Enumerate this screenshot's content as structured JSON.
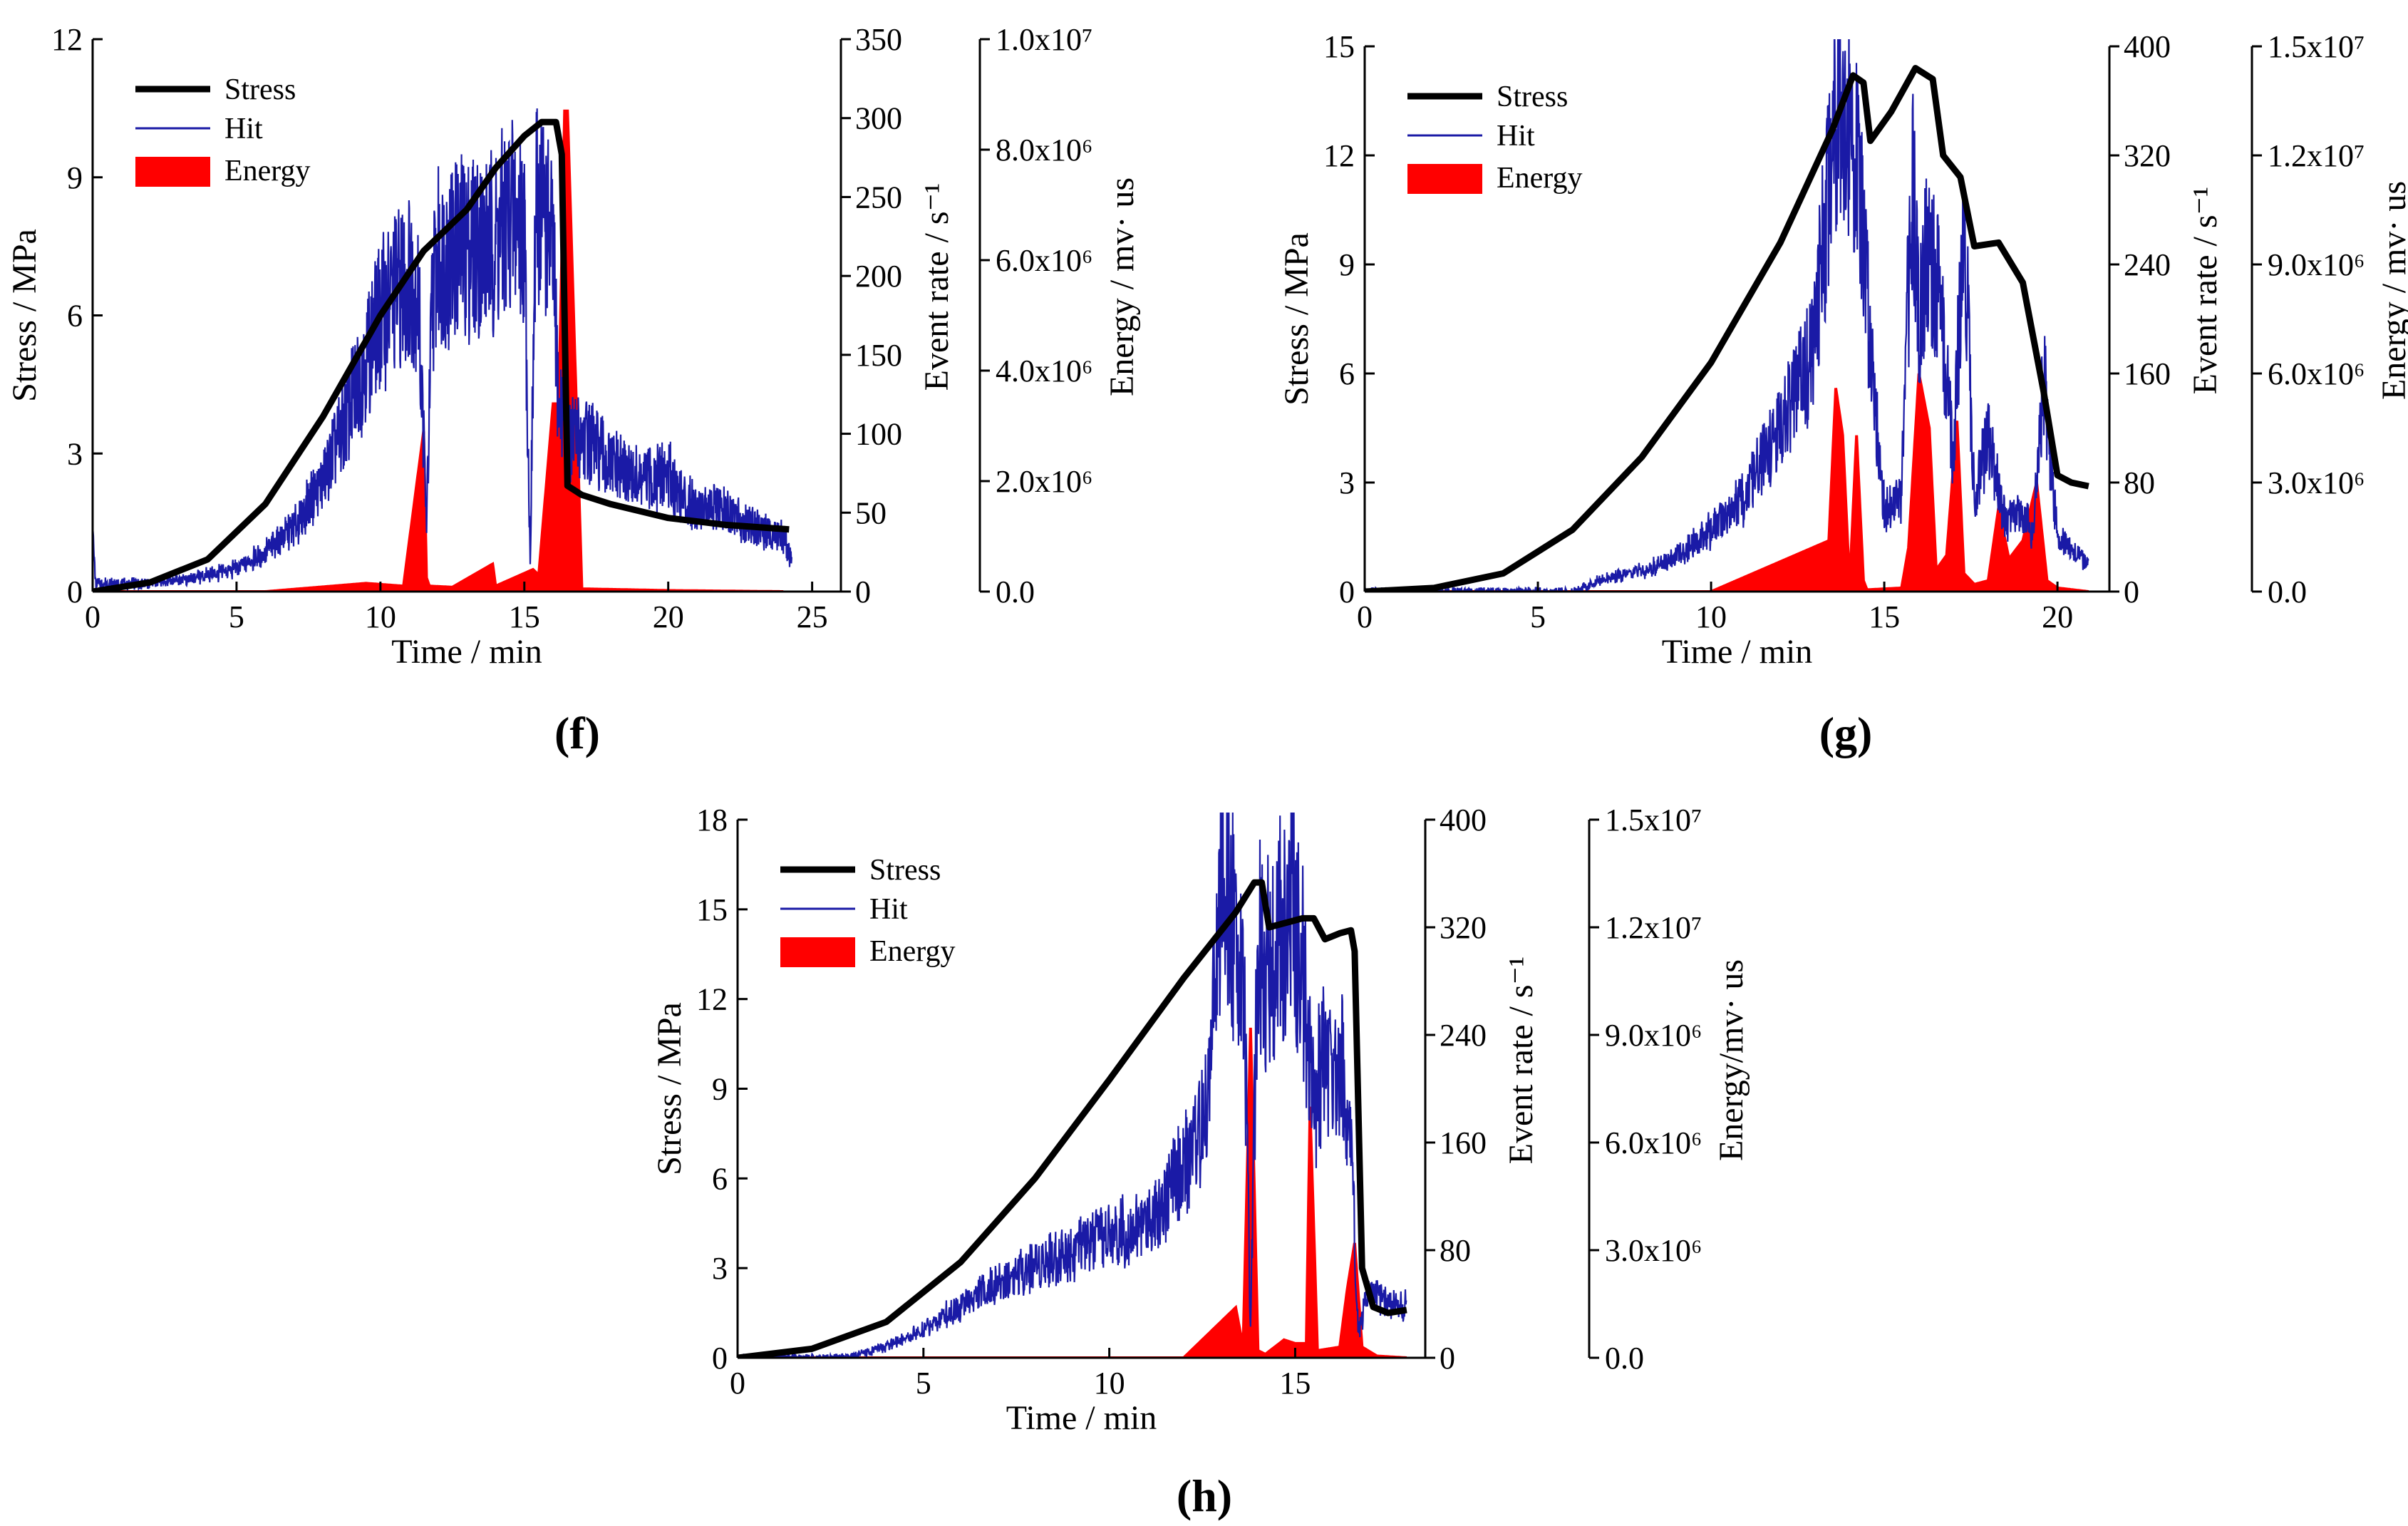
{
  "figure": {
    "panels": [
      {
        "id": "f",
        "label": "(f)"
      },
      {
        "id": "g",
        "label": "(g)"
      },
      {
        "id": "h",
        "label": "(h)"
      }
    ]
  },
  "colors": {
    "stress": "#000000",
    "hit": "#1a1aa6",
    "energy": "#ff0000",
    "axis": "#000000"
  },
  "chart_data": [
    {
      "type": "line",
      "panel": "(f)",
      "xlabel": "Time / min",
      "ylabel": "Stress / MPa",
      "y2label": "Event rate / s⁻¹",
      "y3label": "Energy / mv· us",
      "xlim": [
        0,
        26
      ],
      "ylim": [
        0,
        12
      ],
      "y2lim": [
        0,
        350
      ],
      "y3lim": [
        0,
        10000000
      ],
      "xticks": [
        "0",
        "5",
        "10",
        "15",
        "20",
        "25"
      ],
      "xtick_values": [
        0,
        5,
        10,
        15,
        20,
        25
      ],
      "yticks": [
        "0",
        "3",
        "6",
        "9",
        "12"
      ],
      "ytick_values": [
        0,
        3,
        6,
        9,
        12
      ],
      "y2ticks": [
        "0",
        "50",
        "100",
        "150",
        "200",
        "250",
        "300",
        "350"
      ],
      "y2tick_values": [
        0,
        50,
        100,
        150,
        200,
        250,
        300,
        350
      ],
      "y3ticks": [
        "0.0",
        "2.0x10⁶",
        "4.0x10⁶",
        "6.0x10⁶",
        "8.0x10⁶",
        "1.0x10⁷"
      ],
      "y3tick_values": [
        0,
        2000000,
        4000000,
        6000000,
        8000000,
        10000000
      ],
      "legend": {
        "placement": "top-left",
        "entries": [
          "Stress",
          "Hit",
          "Energy"
        ]
      },
      "series": [
        {
          "name": "Stress",
          "axis": "stress",
          "x": [
            0,
            2,
            4,
            6,
            8,
            10,
            11.5,
            13,
            14,
            15,
            15.6,
            16.1,
            16.3,
            16.5,
            17,
            18,
            20,
            22,
            24.2
          ],
          "y": [
            0,
            0.2,
            0.7,
            1.9,
            3.8,
            6.0,
            7.4,
            8.3,
            9.2,
            9.9,
            10.2,
            10.2,
            9.5,
            2.3,
            2.1,
            1.9,
            1.6,
            1.45,
            1.35
          ]
        },
        {
          "name": "Hit",
          "axis": "rate",
          "x": [
            0,
            0.1,
            0.3,
            2,
            4,
            5,
            6,
            7,
            8,
            9,
            10,
            10.5,
            11,
            11.3,
            11.5,
            11.6,
            11.8,
            12,
            13,
            14,
            14.5,
            15,
            15.2,
            15.4,
            15.6,
            16,
            16.2,
            16.4,
            16.6,
            17,
            17.5,
            18,
            19,
            20,
            20.5,
            21,
            22,
            23,
            24,
            24.3
          ],
          "y": [
            40,
            5,
            5,
            5,
            10,
            15,
            25,
            40,
            70,
            120,
            175,
            190,
            200,
            190,
            100,
            40,
            190,
            210,
            220,
            220,
            240,
            230,
            20,
            240,
            250,
            210,
            110,
            120,
            95,
            100,
            90,
            80,
            70,
            75,
            60,
            55,
            50,
            40,
            35,
            20
          ]
        },
        {
          "name": "Energy",
          "axis": "energy",
          "x": [
            0,
            6,
            9.5,
            10.8,
            11.5,
            11.6,
            11.7,
            12.5,
            13.9,
            14.0,
            15.3,
            15.5,
            16.0,
            16.2,
            16.4,
            16.5,
            17.0,
            20,
            24
          ],
          "y": [
            0,
            0,
            150000,
            100000,
            2900000,
            250000,
            100000,
            80000,
            500000,
            100000,
            400000,
            300000,
            3400000,
            3400000,
            8700000,
            8700000,
            50000,
            20000,
            0
          ]
        }
      ]
    },
    {
      "type": "line",
      "panel": "(g)",
      "xlabel": "Time / min",
      "ylabel": "Stress / MPa",
      "y2label": "Event rate / s⁻¹",
      "y3label": "Energy / mv· us",
      "xlim": [
        0,
        21.5
      ],
      "ylim": [
        0,
        15
      ],
      "y2lim": [
        0,
        400
      ],
      "y3lim": [
        0,
        15000000
      ],
      "xticks": [
        "0",
        "5",
        "10",
        "15",
        "20"
      ],
      "xtick_values": [
        0,
        5,
        10,
        15,
        20
      ],
      "yticks": [
        "0",
        "3",
        "6",
        "9",
        "12",
        "15"
      ],
      "ytick_values": [
        0,
        3,
        6,
        9,
        12,
        15
      ],
      "y2ticks": [
        "0",
        "80",
        "160",
        "240",
        "320",
        "400"
      ],
      "y2tick_values": [
        0,
        80,
        160,
        240,
        320,
        400
      ],
      "y3ticks": [
        "0.0",
        "3.0x10⁶",
        "6.0x10⁶",
        "9.0x10⁶",
        "1.2x10⁷",
        "1.5x10⁷"
      ],
      "y3tick_values": [
        0,
        3000000,
        6000000,
        9000000,
        12000000,
        15000000
      ],
      "legend": {
        "placement": "top-left",
        "entries": [
          "Stress",
          "Hit",
          "Energy"
        ]
      },
      "series": [
        {
          "name": "Stress",
          "axis": "stress",
          "x": [
            0,
            2,
            4,
            6,
            8,
            10,
            12,
            13.5,
            14.1,
            14.4,
            14.6,
            15.2,
            15.9,
            16.4,
            16.7,
            17.2,
            17.6,
            18.3,
            19.0,
            19.6,
            20.0,
            20.4,
            20.9
          ],
          "y": [
            0,
            0.1,
            0.5,
            1.7,
            3.7,
            6.3,
            9.6,
            12.7,
            14.2,
            14.0,
            12.4,
            13.2,
            14.4,
            14.1,
            12.0,
            11.4,
            9.5,
            9.6,
            8.5,
            5.5,
            3.2,
            3.0,
            2.9
          ]
        },
        {
          "name": "Hit",
          "axis": "rate",
          "x": [
            0,
            2,
            4,
            6,
            7,
            8,
            9,
            10,
            11,
            12,
            12.5,
            13,
            13.5,
            13.7,
            13.9,
            14.1,
            14.5,
            15,
            15.5,
            15.8,
            16,
            16.3,
            16.6,
            17,
            17.3,
            17.6,
            18,
            18.5,
            19,
            19.3,
            19.6,
            20,
            20.5,
            20.9
          ],
          "y": [
            0,
            0,
            0,
            0,
            10,
            15,
            25,
            45,
            70,
            120,
            150,
            180,
            340,
            390,
            330,
            340,
            220,
            60,
            70,
            300,
            210,
            250,
            210,
            100,
            280,
            70,
            110,
            50,
            60,
            40,
            160,
            40,
            30,
            20
          ]
        },
        {
          "name": "Energy",
          "axis": "energy",
          "x": [
            0,
            10,
            13.4,
            13.6,
            13.8,
            14.0,
            14.2,
            14.4,
            14.5,
            15.5,
            15.7,
            16.0,
            16.3,
            16.5,
            16.8,
            17.1,
            17.3,
            17.6,
            18.0,
            18.3,
            18.6,
            19.0,
            19.4,
            19.7,
            20.0,
            20.9
          ],
          "y": [
            0,
            0,
            1400000,
            5600000,
            4300000,
            200000,
            4300000,
            300000,
            50000,
            100000,
            1200000,
            6000000,
            4500000,
            600000,
            1000000,
            4700000,
            500000,
            200000,
            300000,
            2300000,
            900000,
            1400000,
            3000000,
            300000,
            100000,
            0
          ]
        }
      ]
    },
    {
      "type": "line",
      "panel": "(h)",
      "xlabel": "Time / min",
      "ylabel": "Stress / MPa",
      "y2label": "Event rate / s⁻¹",
      "y3label": "Energy/mv· us",
      "xlim": [
        0,
        18.5
      ],
      "ylim": [
        0,
        18
      ],
      "y2lim": [
        0,
        400
      ],
      "y3lim": [
        0,
        15000000
      ],
      "xticks": [
        "0",
        "5",
        "10",
        "15"
      ],
      "xtick_values": [
        0,
        5,
        10,
        15
      ],
      "yticks": [
        "0",
        "3",
        "6",
        "9",
        "12",
        "15",
        "18"
      ],
      "ytick_values": [
        0,
        3,
        6,
        9,
        12,
        15,
        18
      ],
      "y2ticks": [
        "0",
        "80",
        "160",
        "240",
        "320",
        "400"
      ],
      "y2tick_values": [
        0,
        80,
        160,
        240,
        320,
        400
      ],
      "y3ticks": [
        "0.0",
        "3.0x10⁶",
        "6.0x10⁶",
        "9.0x10⁶",
        "1.2x10⁷",
        "1.5x10⁷"
      ],
      "y3tick_values": [
        0,
        3000000,
        6000000,
        9000000,
        12000000,
        15000000
      ],
      "legend": {
        "placement": "top-left",
        "entries": [
          "Stress",
          "Hit",
          "Energy"
        ]
      },
      "series": [
        {
          "name": "Stress",
          "axis": "stress",
          "x": [
            0,
            2,
            4,
            6,
            8,
            10,
            12,
            13.4,
            13.9,
            14.1,
            14.3,
            15.2,
            15.5,
            15.8,
            16.2,
            16.5,
            16.6,
            16.8,
            17.1,
            17.5,
            18.0
          ],
          "y": [
            0,
            0.3,
            1.2,
            3.2,
            6.0,
            9.3,
            12.7,
            14.9,
            15.9,
            15.9,
            14.4,
            14.7,
            14.7,
            14.0,
            14.2,
            14.3,
            13.6,
            3.0,
            1.7,
            1.5,
            1.6
          ]
        },
        {
          "name": "Hit",
          "axis": "rate",
          "x": [
            0,
            3,
            4.2,
            5,
            6,
            7,
            8,
            9,
            10,
            11,
            12,
            12.6,
            13,
            13.2,
            13.6,
            13.8,
            14.0,
            14.2,
            14.5,
            14.9,
            15.2,
            15.5,
            15.7,
            16.0,
            16.3,
            16.5,
            16.7,
            17.0,
            17.5,
            18.0
          ],
          "y": [
            0,
            0,
            10,
            20,
            40,
            55,
            70,
            80,
            90,
            100,
            140,
            180,
            340,
            330,
            300,
            20,
            320,
            290,
            310,
            340,
            290,
            180,
            220,
            220,
            210,
            160,
            20,
            50,
            40,
            40
          ]
        },
        {
          "name": "Energy",
          "axis": "energy",
          "x": [
            0,
            12,
            13.4,
            13.6,
            13.8,
            14.0,
            14.2,
            14.7,
            15.0,
            15.3,
            15.4,
            15.6,
            16.2,
            16.4,
            16.6,
            16.8,
            17.2,
            18.0
          ],
          "y": [
            0,
            0,
            1400000,
            300000,
            9200000,
            200000,
            100000,
            500000,
            400000,
            400000,
            7000000,
            200000,
            300000,
            1900000,
            3200000,
            300000,
            50000,
            0
          ]
        }
      ]
    }
  ]
}
